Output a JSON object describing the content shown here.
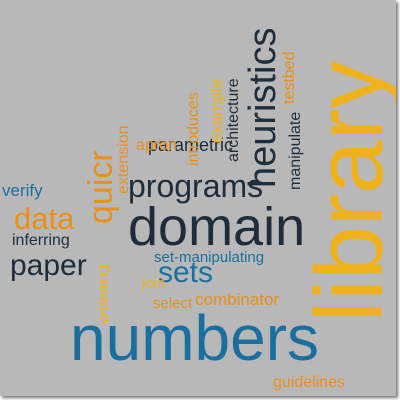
{
  "colors": {
    "background": "#b8b8b8",
    "dark": "#1f2d3a",
    "blue": "#1b6fa0",
    "orange": "#e8901a",
    "yellow": "#f0b21a"
  },
  "words": [
    {
      "text": "library",
      "color": "#f0b21a"
    },
    {
      "text": "numbers",
      "color": "#1b6fa0"
    },
    {
      "text": "domain",
      "color": "#1f2d3a"
    },
    {
      "text": "heuristics",
      "color": "#1f2d3a"
    },
    {
      "text": "programs",
      "color": "#1f2d3a"
    },
    {
      "text": "quicr",
      "color": "#e8901a"
    },
    {
      "text": "data",
      "color": "#e8901a"
    },
    {
      "text": "paper",
      "color": "#1f2d3a"
    },
    {
      "text": "sets",
      "color": "#1b6fa0"
    },
    {
      "text": "parametric",
      "color": "#1f2d3a"
    },
    {
      "text": "architecture",
      "color": "#1f2d3a"
    },
    {
      "text": "manipulate",
      "color": "#1f2d3a"
    },
    {
      "text": "testbed",
      "color": "#e8901a"
    },
    {
      "text": "example",
      "color": "#f0b21a"
    },
    {
      "text": "introduces",
      "color": "#e8901a"
    },
    {
      "text": "apron",
      "color": "#e8901a"
    },
    {
      "text": "extension",
      "color": "#e8901a"
    },
    {
      "text": "verify",
      "color": "#1b6fa0"
    },
    {
      "text": "inferring",
      "color": "#1f2d3a"
    },
    {
      "text": "set-manipulating",
      "color": "#1b6fa0"
    },
    {
      "text": "widening",
      "color": "#f0b21a"
    },
    {
      "text": "join",
      "color": "#f0b21a"
    },
    {
      "text": "select",
      "color": "#e8901a"
    },
    {
      "text": "combinator",
      "color": "#e8901a"
    },
    {
      "text": "guidelines",
      "color": "#e8901a"
    }
  ]
}
